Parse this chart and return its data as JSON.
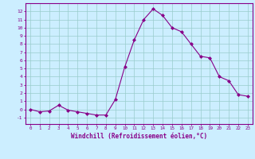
{
  "x": [
    0,
    1,
    2,
    3,
    4,
    5,
    6,
    7,
    8,
    9,
    10,
    11,
    12,
    13,
    14,
    15,
    16,
    17,
    18,
    19,
    20,
    21,
    22,
    23
  ],
  "y": [
    0.0,
    -0.3,
    -0.2,
    0.5,
    -0.1,
    -0.3,
    -0.5,
    -0.7,
    -0.7,
    1.2,
    5.2,
    8.5,
    11.0,
    12.3,
    11.5,
    10.0,
    9.5,
    8.0,
    6.5,
    6.3,
    4.0,
    3.5,
    1.8,
    1.6
  ],
  "line_color": "#880088",
  "marker_color": "#880088",
  "bg_color": "#cceeff",
  "grid_color": "#99cccc",
  "axis_color": "#880088",
  "tick_color": "#880088",
  "xlabel": "Windchill (Refroidissement éolien,°C)",
  "xlim": [
    -0.5,
    23.5
  ],
  "ylim": [
    -1.8,
    13.0
  ],
  "yticks": [
    -1,
    0,
    1,
    2,
    3,
    4,
    5,
    6,
    7,
    8,
    9,
    10,
    11,
    12
  ],
  "xticks": [
    0,
    1,
    2,
    3,
    4,
    5,
    6,
    7,
    8,
    9,
    10,
    11,
    12,
    13,
    14,
    15,
    16,
    17,
    18,
    19,
    20,
    21,
    22,
    23
  ]
}
